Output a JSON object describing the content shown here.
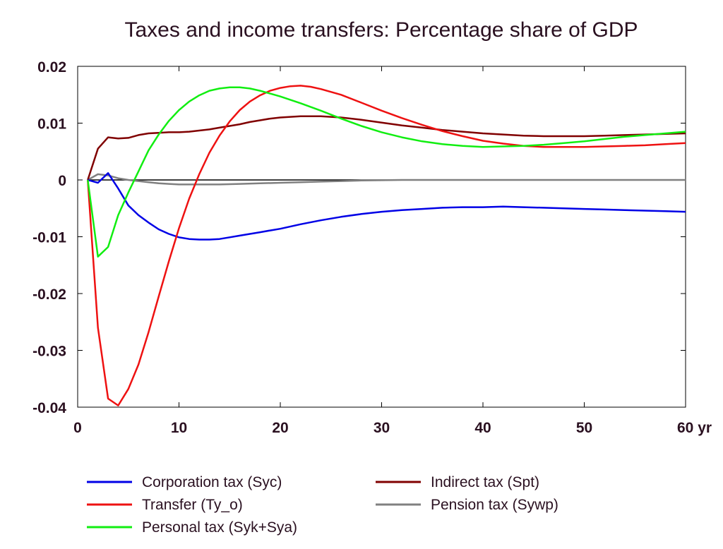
{
  "chart_data": {
    "type": "line",
    "title": "Taxes and income transfers: Percentage share of GDP",
    "xlabel": "",
    "ylabel": "",
    "x_unit_label": "yr",
    "xlim": [
      0,
      60
    ],
    "ylim": [
      -0.04,
      0.02
    ],
    "x_ticks": [
      0,
      10,
      20,
      30,
      40,
      50,
      60
    ],
    "x_tick_labels": [
      "0",
      "10",
      "20",
      "30",
      "40",
      "50",
      "60 yr"
    ],
    "y_ticks": [
      0.02,
      0.01,
      0,
      -0.01,
      -0.02,
      -0.03,
      -0.04
    ],
    "y_tick_labels": [
      "0.02",
      "0.01",
      "0",
      "-0.01",
      "-0.02",
      "-0.03",
      "-0.04"
    ],
    "grid": false,
    "legend_position": "bottom",
    "series": [
      {
        "name": "Corporation tax (Syc)",
        "color": "#0000e6",
        "x": [
          1,
          2,
          3,
          4,
          5,
          6,
          7,
          8,
          9,
          10,
          11,
          12,
          13,
          14,
          15,
          16,
          17,
          18,
          19,
          20,
          22,
          24,
          26,
          28,
          30,
          32,
          34,
          36,
          38,
          40,
          42,
          44,
          46,
          48,
          50,
          52,
          54,
          56,
          58,
          60
        ],
        "y": [
          0,
          -0.0005,
          0.0012,
          -0.0015,
          -0.0045,
          -0.0062,
          -0.0075,
          -0.0087,
          -0.0095,
          -0.0101,
          -0.0104,
          -0.0105,
          -0.0105,
          -0.0104,
          -0.0101,
          -0.0098,
          -0.0095,
          -0.0092,
          -0.0089,
          -0.0086,
          -0.0078,
          -0.0071,
          -0.0065,
          -0.006,
          -0.0056,
          -0.0053,
          -0.0051,
          -0.0049,
          -0.0048,
          -0.0048,
          -0.0047,
          -0.0048,
          -0.0049,
          -0.005,
          -0.0051,
          -0.0052,
          -0.0053,
          -0.0054,
          -0.0055,
          -0.0056
        ]
      },
      {
        "name": "Transfer (Ty_o)",
        "color": "#ee1111",
        "x": [
          1,
          2,
          3,
          4,
          5,
          6,
          7,
          8,
          9,
          10,
          11,
          12,
          13,
          14,
          15,
          16,
          17,
          18,
          19,
          20,
          21,
          22,
          23,
          24,
          26,
          28,
          30,
          32,
          34,
          36,
          38,
          40,
          42,
          44,
          46,
          48,
          50,
          52,
          54,
          56,
          58,
          60
        ],
        "y": [
          0,
          -0.026,
          -0.0385,
          -0.0397,
          -0.0368,
          -0.0325,
          -0.0268,
          -0.0205,
          -0.0143,
          -0.0085,
          -0.0033,
          0.001,
          0.0048,
          0.0078,
          0.0103,
          0.0123,
          0.0138,
          0.0149,
          0.0157,
          0.0162,
          0.0165,
          0.0166,
          0.0164,
          0.016,
          0.015,
          0.0136,
          0.0122,
          0.0109,
          0.0097,
          0.0086,
          0.0077,
          0.0069,
          0.0064,
          0.006,
          0.0058,
          0.0058,
          0.0058,
          0.0059,
          0.006,
          0.0061,
          0.0063,
          0.0065
        ]
      },
      {
        "name": "Personal tax (Syk+Sya)",
        "color": "#11ee11",
        "x": [
          1,
          2,
          3,
          4,
          5,
          6,
          7,
          8,
          9,
          10,
          11,
          12,
          13,
          14,
          15,
          16,
          17,
          18,
          19,
          20,
          22,
          24,
          26,
          28,
          30,
          32,
          34,
          36,
          38,
          40,
          42,
          44,
          46,
          48,
          50,
          52,
          54,
          56,
          58,
          60
        ],
        "y": [
          0,
          -0.0135,
          -0.0118,
          -0.0062,
          -0.0022,
          0.0015,
          0.0052,
          0.008,
          0.0104,
          0.0123,
          0.0138,
          0.0149,
          0.0157,
          0.0161,
          0.0163,
          0.0163,
          0.0161,
          0.0157,
          0.0152,
          0.0147,
          0.0135,
          0.0122,
          0.0108,
          0.0095,
          0.0084,
          0.0075,
          0.0068,
          0.0063,
          0.006,
          0.0058,
          0.0059,
          0.006,
          0.0062,
          0.0065,
          0.0068,
          0.0072,
          0.0076,
          0.0079,
          0.0082,
          0.0085
        ]
      },
      {
        "name": "Indirect tax (Spt)",
        "color": "#800000",
        "x": [
          1,
          2,
          3,
          4,
          5,
          6,
          7,
          8,
          9,
          10,
          11,
          12,
          13,
          14,
          15,
          16,
          17,
          18,
          19,
          20,
          21,
          22,
          23,
          24,
          26,
          28,
          30,
          32,
          34,
          36,
          38,
          40,
          42,
          44,
          46,
          48,
          50,
          52,
          54,
          56,
          58,
          60
        ],
        "y": [
          0,
          0.0055,
          0.0075,
          0.0073,
          0.0074,
          0.0079,
          0.0082,
          0.0083,
          0.0084,
          0.0084,
          0.0085,
          0.0087,
          0.0089,
          0.0092,
          0.0095,
          0.0098,
          0.0102,
          0.0105,
          0.0108,
          0.011,
          0.0111,
          0.0112,
          0.0112,
          0.0112,
          0.011,
          0.0106,
          0.0101,
          0.0096,
          0.0092,
          0.0088,
          0.0085,
          0.0082,
          0.008,
          0.0078,
          0.0077,
          0.0077,
          0.0077,
          0.0078,
          0.0079,
          0.008,
          0.0081,
          0.0082
        ]
      },
      {
        "name": "Pension tax (Sywp)",
        "color": "#808080",
        "x": [
          1,
          2,
          3,
          4,
          5,
          6,
          7,
          8,
          9,
          10,
          11,
          12,
          14,
          16,
          18,
          20,
          22,
          24,
          26,
          28,
          30,
          32,
          34,
          36,
          40,
          44,
          48,
          52,
          56,
          60
        ],
        "y": [
          0,
          0.001,
          0.0008,
          0.0003,
          0,
          -0.0002,
          -0.0004,
          -0.0006,
          -0.0007,
          -0.0008,
          -0.0008,
          -0.0008,
          -0.0008,
          -0.0007,
          -0.0006,
          -0.0005,
          -0.0004,
          -0.0003,
          -0.0002,
          -0.0001,
          -5e-05,
          0,
          0,
          0,
          0,
          0,
          0,
          0,
          0,
          0
        ]
      },
      {
        "name": "",
        "color": "#000000",
        "role": "zero-reference-line",
        "x": [
          1,
          60
        ],
        "y": [
          0,
          0
        ]
      }
    ]
  }
}
